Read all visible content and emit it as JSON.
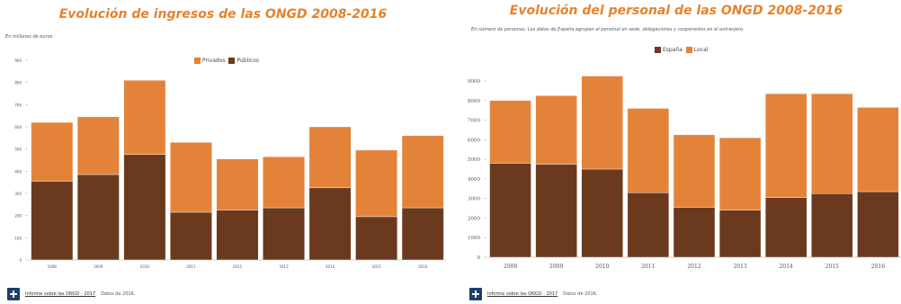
{
  "colors": {
    "privados": "#E3833A",
    "publicos": "#6B3A1E",
    "espana": "#6B3A1E",
    "local": "#E3833A",
    "title": "#E8822A",
    "axis": "#999999"
  },
  "left": {
    "title": "Evolución de ingresos de las ONGD 2008-2016",
    "subtitle": "En millones de euros",
    "legend": [
      "Privados",
      "Públicos"
    ],
    "footer_link": "Informe sobre las ONGD - 2017",
    "footer_text": "Datos de 2016."
  },
  "right": {
    "title": "Evolución del personal de las ONGD 2008-2016",
    "subtitle": "En número de personas. Los datos de España agrupan al personal en sede, delegaciones y cooperantes en el extranjero.",
    "legend": [
      "España",
      "Local"
    ],
    "footer_link": "Informe sobre las ONGD - 2017",
    "footer_text": "Datos de 2016."
  },
  "chart_data": [
    {
      "type": "bar",
      "stacked": true,
      "title": "Evolución de ingresos de las ONGD 2008-2016",
      "ylabel": "En millones de euros",
      "categories": [
        "2008",
        "2009",
        "2010",
        "2011",
        "2012",
        "2013",
        "2014",
        "2015",
        "2016"
      ],
      "series": [
        {
          "name": "Públicos",
          "values": [
            355,
            385,
            475,
            215,
            225,
            235,
            325,
            195,
            235
          ]
        },
        {
          "name": "Privados",
          "values": [
            265,
            260,
            335,
            315,
            230,
            230,
            275,
            300,
            325
          ]
        }
      ],
      "ylim": [
        0,
        900
      ],
      "yticks": [
        "0",
        "100",
        "200",
        "300",
        "400",
        "500",
        "600",
        "700",
        "800",
        "900"
      ],
      "legend_position": "top-right",
      "grid": false
    },
    {
      "type": "bar",
      "stacked": true,
      "title": "Evolución del personal de las ONGD 2008-2016",
      "ylabel": "En número de personas",
      "categories": [
        "2008",
        "2009",
        "2010",
        "2011",
        "2012",
        "2013",
        "2014",
        "2015",
        "2016"
      ],
      "series": [
        {
          "name": "España",
          "values": [
            4800,
            4750,
            4500,
            3300,
            2550,
            2400,
            3050,
            3250,
            3350
          ]
        },
        {
          "name": "Local",
          "values": [
            3200,
            3500,
            4750,
            4300,
            3700,
            3700,
            5300,
            5100,
            4300
          ]
        }
      ],
      "ylim": [
        0,
        9000
      ],
      "yticks": [
        "0",
        "1000",
        "2000",
        "3000",
        "4000",
        "5000",
        "6000",
        "7000",
        "8000",
        "9000"
      ],
      "legend_position": "top-center",
      "grid": false
    }
  ]
}
